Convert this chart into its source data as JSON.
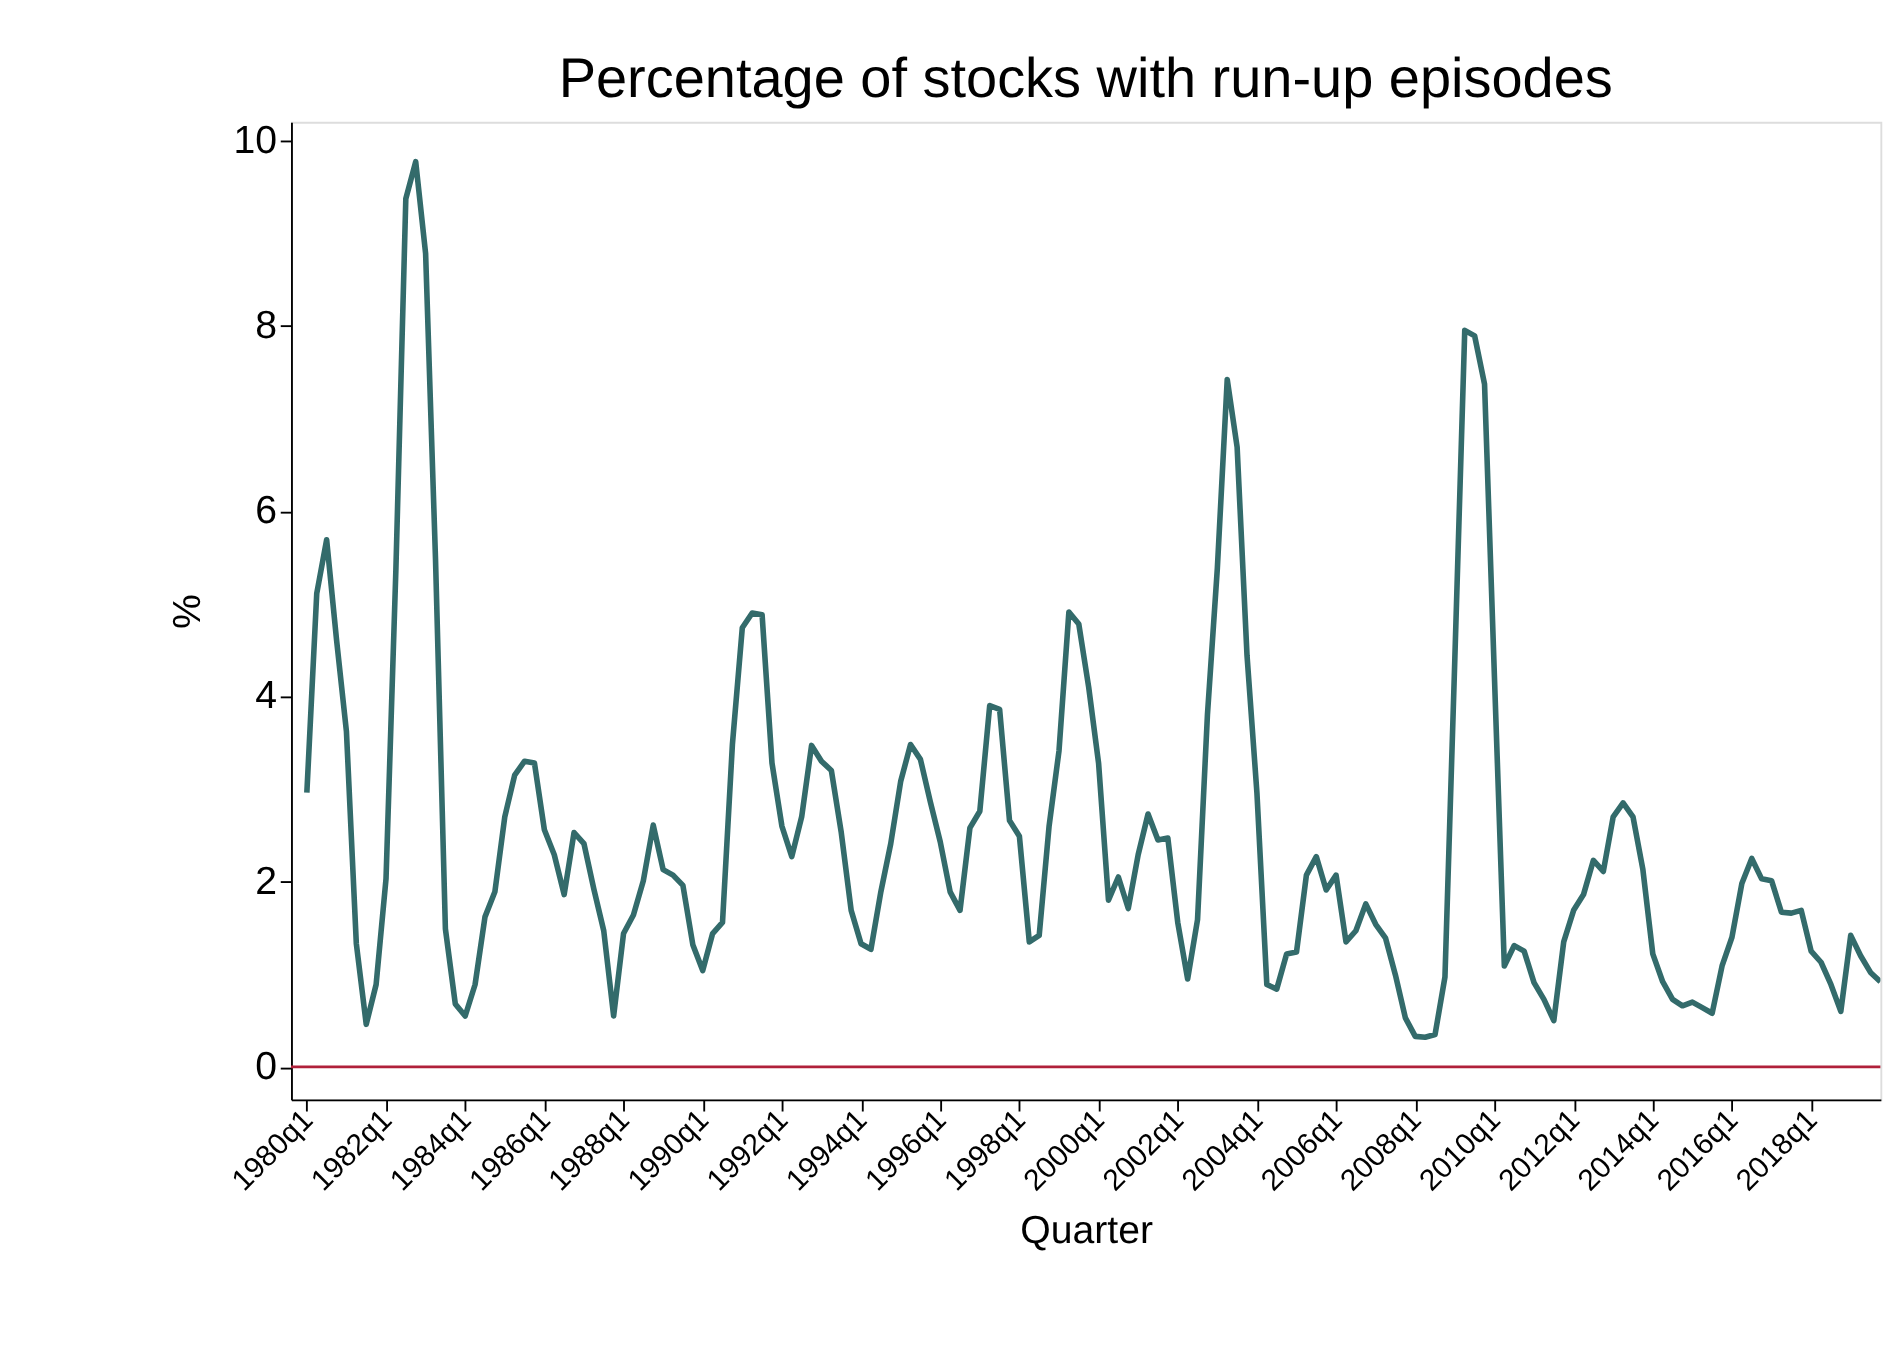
{
  "chart_data": {
    "type": "line",
    "title": "Percentage of stocks with run-up episodes",
    "xlabel": "Quarter",
    "ylabel": "%",
    "categories": [
      "1980q1",
      null,
      null,
      null,
      null,
      null,
      null,
      null,
      "1982q1",
      null,
      null,
      null,
      null,
      null,
      null,
      null,
      "1984q1",
      null,
      null,
      null,
      null,
      null,
      null,
      null,
      "1986q1",
      null,
      null,
      null,
      null,
      null,
      null,
      null,
      "1988q1",
      null,
      null,
      null,
      null,
      null,
      null,
      null,
      "1990q1",
      null,
      null,
      null,
      null,
      null,
      null,
      null,
      "1992q1",
      null,
      null,
      null,
      null,
      null,
      null,
      null,
      "1994q1",
      null,
      null,
      null,
      null,
      null,
      null,
      null,
      "1996q1",
      null,
      null,
      null,
      null,
      null,
      null,
      null,
      "1998q1",
      null,
      null,
      null,
      null,
      null,
      null,
      null,
      "2000q1",
      null,
      null,
      null,
      null,
      null,
      null,
      null,
      "2002q1",
      null,
      null,
      null,
      null,
      null,
      null,
      null,
      "2004q1",
      null,
      null,
      null,
      null,
      null,
      null,
      null,
      "2006q1",
      null,
      null,
      null,
      null,
      null,
      null,
      null,
      "2008q1",
      null,
      null,
      null,
      null,
      null,
      null,
      null,
      "2010q1",
      null,
      null,
      null,
      null,
      null,
      null,
      null,
      "2012q1",
      null,
      null,
      null,
      null,
      null,
      null,
      null,
      "2014q1",
      null,
      null,
      null,
      null,
      null,
      null,
      null,
      "2016q1",
      null,
      null,
      null,
      null,
      null,
      null,
      null,
      "2018q1",
      null,
      null,
      null,
      null,
      null,
      null,
      null
    ],
    "series": [
      {
        "color": "#336b6b",
        "values": [
          2.96,
          5.11,
          5.69,
          4.61,
          3.62,
          1.33,
          0.46,
          0.89,
          2.03,
          5.38,
          9.37,
          9.77,
          8.78,
          5.48,
          1.49,
          0.68,
          0.55,
          0.89,
          1.62,
          1.89,
          2.7,
          3.15,
          3.3,
          3.28,
          2.56,
          2.29,
          1.86,
          2.53,
          2.41,
          1.92,
          1.47,
          0.55,
          1.44,
          1.64,
          2.01,
          2.61,
          2.13,
          2.07,
          1.96,
          1.32,
          1.04,
          1.44,
          1.56,
          3.48,
          4.74,
          4.9,
          4.88,
          3.28,
          2.6,
          2.27,
          2.7,
          3.47,
          3.3,
          3.2,
          2.53,
          1.69,
          1.33,
          1.27,
          1.89,
          2.41,
          3.08,
          3.48,
          3.32,
          2.86,
          2.43,
          1.89,
          1.69,
          2.58,
          2.76,
          3.9,
          3.86,
          2.66,
          2.49,
          1.35,
          1.42,
          2.6,
          3.41,
          4.91,
          4.78,
          4.1,
          3.28,
          1.8,
          2.05,
          1.71,
          2.29,
          2.73,
          2.45,
          2.47,
          1.56,
          0.95,
          1.59,
          3.8,
          5.38,
          7.42,
          6.69,
          4.44,
          2.96,
          0.89,
          0.84,
          1.22,
          1.24,
          2.07,
          2.27,
          1.91,
          2.07,
          1.35,
          1.47,
          1.76,
          1.54,
          1.39,
          0.99,
          0.53,
          0.33,
          0.32,
          0.35,
          0.97,
          4.41,
          7.95,
          7.89,
          7.37,
          4.21,
          1.09,
          1.31,
          1.25,
          0.91,
          0.73,
          0.5,
          1.35,
          1.69,
          1.86,
          2.23,
          2.11,
          2.7,
          2.85,
          2.7,
          2.13,
          1.22,
          0.92,
          0.73,
          0.66,
          0.7,
          0.64,
          0.58,
          1.09,
          1.4,
          1.98,
          2.25,
          2.03,
          2.01,
          1.67,
          1.66,
          1.69,
          1.25,
          1.13,
          0.89,
          0.6,
          1.42,
          1.2,
          1.02,
          0.92
        ]
      }
    ],
    "ylim": [
      -0.35,
      10.2
    ],
    "yticks": [
      0,
      2,
      4,
      6,
      8,
      10
    ],
    "ref_lines": [
      {
        "axis": "y",
        "value": 0,
        "color": "#b0203a"
      }
    ],
    "grid": false
  }
}
